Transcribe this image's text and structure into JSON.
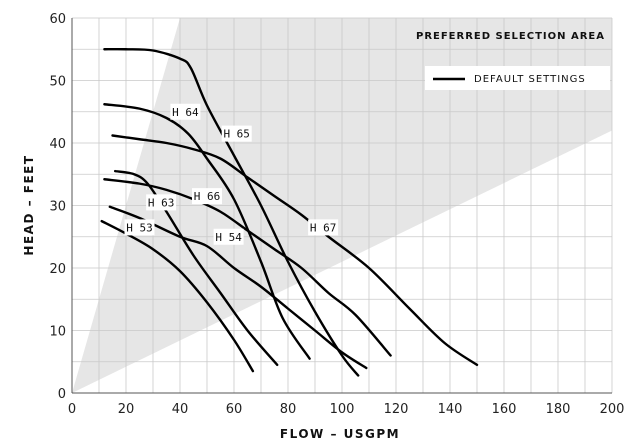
{
  "chart_data": {
    "type": "line",
    "xlabel": "FLOW – USGPM",
    "ylabel": "HEAD – FEET",
    "xlim": [
      0,
      200
    ],
    "ylim": [
      0,
      60
    ],
    "x_ticks": [
      0,
      20,
      40,
      60,
      80,
      100,
      120,
      140,
      160,
      180,
      200
    ],
    "y_ticks": [
      0,
      10,
      20,
      30,
      40,
      50,
      60
    ],
    "x_tick_labels": [
      "0",
      "20",
      "40",
      "60",
      "80",
      "100",
      "120",
      "140",
      "160",
      "180",
      "200"
    ],
    "y_tick_labels": [
      "0",
      "10",
      "20",
      "30",
      "40",
      "50",
      "60"
    ],
    "grid": true,
    "preferred_area": {
      "label": "PREFERRED SELECTION AREA",
      "polygon": [
        [
          0,
          0
        ],
        [
          40,
          60
        ],
        [
          200,
          60
        ],
        [
          200,
          42
        ]
      ],
      "color": "#e6e6e6"
    },
    "legend": {
      "label": "DEFAULT SETTINGS",
      "placement": "top-right"
    },
    "series": [
      {
        "name": "H 53",
        "label_at": [
          25,
          26.5
        ],
        "points": [
          [
            11,
            27.5
          ],
          [
            20,
            25.5
          ],
          [
            30,
            23
          ],
          [
            40,
            19.5
          ],
          [
            50,
            14.5
          ],
          [
            60,
            8.5
          ],
          [
            67,
            3.5
          ]
        ]
      },
      {
        "name": "H 54",
        "label_at": [
          58,
          25
        ],
        "points": [
          [
            14,
            29.8
          ],
          [
            25,
            28
          ],
          [
            40,
            25
          ],
          [
            50,
            23.5
          ],
          [
            60,
            20
          ],
          [
            70,
            17
          ],
          [
            80,
            13.5
          ],
          [
            90,
            10
          ],
          [
            100,
            6.5
          ],
          [
            109,
            4
          ]
        ]
      },
      {
        "name": "H 63",
        "label_at": [
          33,
          30.5
        ],
        "points": [
          [
            16,
            35.5
          ],
          [
            23,
            35
          ],
          [
            28,
            33.5
          ],
          [
            35,
            29
          ],
          [
            45,
            22
          ],
          [
            55,
            16
          ],
          [
            65,
            10
          ],
          [
            76,
            4.5
          ]
        ]
      },
      {
        "name": "H 64",
        "label_at": [
          42,
          45
        ],
        "points": [
          [
            12,
            46.2
          ],
          [
            25,
            45.5
          ],
          [
            35,
            44
          ],
          [
            43,
            41.5
          ],
          [
            50,
            37.5
          ],
          [
            60,
            31
          ],
          [
            70,
            21
          ],
          [
            78,
            12
          ],
          [
            88,
            5.5
          ]
        ]
      },
      {
        "name": "H 65",
        "label_at": [
          61,
          41.5
        ],
        "points": [
          [
            12,
            55
          ],
          [
            20,
            55
          ],
          [
            30,
            54.8
          ],
          [
            40,
            53.5
          ],
          [
            44,
            52
          ],
          [
            50,
            46
          ],
          [
            60,
            38
          ],
          [
            70,
            30
          ],
          [
            80,
            21
          ],
          [
            90,
            13
          ],
          [
            100,
            6
          ],
          [
            106,
            2.8
          ]
        ]
      },
      {
        "name": "H 66",
        "label_at": [
          50,
          31.5
        ],
        "points": [
          [
            12,
            34.2
          ],
          [
            25,
            33.5
          ],
          [
            35,
            32.5
          ],
          [
            45,
            31
          ],
          [
            55,
            29
          ],
          [
            65,
            26
          ],
          [
            75,
            23
          ],
          [
            85,
            20
          ],
          [
            95,
            16
          ],
          [
            105,
            12.5
          ],
          [
            118,
            6
          ]
        ]
      },
      {
        "name": "H 67",
        "label_at": [
          93,
          26.5
        ],
        "points": [
          [
            15,
            41.2
          ],
          [
            25,
            40.6
          ],
          [
            35,
            40
          ],
          [
            45,
            39
          ],
          [
            55,
            37.5
          ],
          [
            65,
            34.5
          ],
          [
            75,
            31.5
          ],
          [
            85,
            28.5
          ],
          [
            95,
            25
          ],
          [
            110,
            20
          ],
          [
            125,
            13.5
          ],
          [
            138,
            8
          ],
          [
            150,
            4.5
          ]
        ]
      }
    ]
  }
}
